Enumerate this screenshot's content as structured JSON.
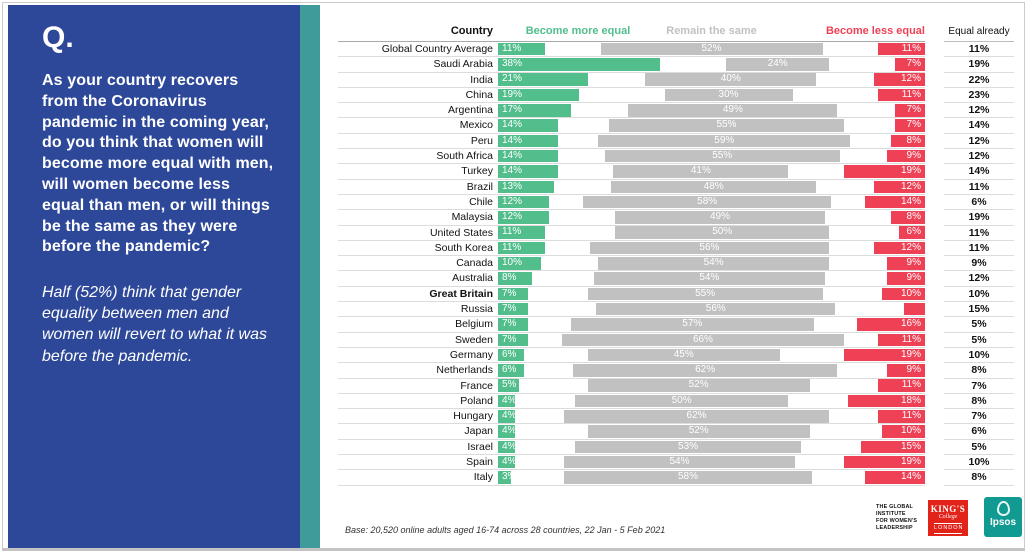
{
  "panel": {
    "q_label": "Q.",
    "question": "As your country recovers from the Coronavirus pandemic in the coming year, do you think that women will become more equal with men, will women become less equal than men, or will things be the same as they were before the pandemic?",
    "note": "Half (52%) think that gender equality between men and women will revert to what it was before the pandemic."
  },
  "chart_data": {
    "type": "bar",
    "orientation": "horizontal",
    "subtype": "diverging-stacked-percentage",
    "xlim": [
      0,
      100
    ],
    "grid": false,
    "legend_position": "column-headers",
    "headers": {
      "country": "Country",
      "more": "Become more equal",
      "same": "Remain the same",
      "less": "Become less equal",
      "equal_already": "Equal already"
    },
    "colors": {
      "more": "#52BE8C",
      "same": "#C1C1C1",
      "less": "#EE4156"
    },
    "rows": [
      {
        "country": "Global Country Average",
        "more": 11,
        "same": 52,
        "less": 11,
        "equal_already": "11%"
      },
      {
        "country": "Saudi Arabia",
        "more": 38,
        "same": 24,
        "less": 7,
        "equal_already": "19%"
      },
      {
        "country": "India",
        "more": 21,
        "same": 40,
        "less": 12,
        "equal_already": "22%"
      },
      {
        "country": "China",
        "more": 19,
        "same": 30,
        "less": 11,
        "equal_already": "23%"
      },
      {
        "country": "Argentina",
        "more": 17,
        "same": 49,
        "less": 7,
        "equal_already": "12%"
      },
      {
        "country": "Mexico",
        "more": 14,
        "same": 55,
        "less": 7,
        "equal_already": "14%"
      },
      {
        "country": "Peru",
        "more": 14,
        "same": 59,
        "less": 8,
        "equal_already": "12%"
      },
      {
        "country": "South Africa",
        "more": 14,
        "same": 55,
        "less": 9,
        "equal_already": "12%"
      },
      {
        "country": "Turkey",
        "more": 14,
        "same": 41,
        "less": 19,
        "equal_already": "14%"
      },
      {
        "country": "Brazil",
        "more": 13,
        "same": 48,
        "less": 12,
        "equal_already": "11%"
      },
      {
        "country": "Chile",
        "more": 12,
        "same": 58,
        "less": 14,
        "equal_already": "6%"
      },
      {
        "country": "Malaysia",
        "more": 12,
        "same": 49,
        "less": 8,
        "equal_already": "19%"
      },
      {
        "country": "United States",
        "more": 11,
        "same": 50,
        "less": 6,
        "equal_already": "11%"
      },
      {
        "country": "South Korea",
        "more": 11,
        "same": 56,
        "less": 12,
        "equal_already": "11%"
      },
      {
        "country": "Canada",
        "more": 10,
        "same": 54,
        "less": 9,
        "equal_already": "9%"
      },
      {
        "country": "Australia",
        "more": 8,
        "same": 54,
        "less": 9,
        "equal_already": "12%"
      },
      {
        "country": "Great Britain",
        "bold": true,
        "more": 7,
        "same": 55,
        "less": 10,
        "equal_already": "10%"
      },
      {
        "country": "Russia",
        "more": 7,
        "same": 56,
        "less": 5,
        "less_label": "",
        "equal_already": "15%"
      },
      {
        "country": "Belgium",
        "more": 7,
        "same": 57,
        "less": 16,
        "equal_already": "5%"
      },
      {
        "country": "Sweden",
        "more": 7,
        "same": 66,
        "less": 11,
        "equal_already": "5%"
      },
      {
        "country": "Germany",
        "more": 6,
        "same": 45,
        "less": 19,
        "equal_already": "10%"
      },
      {
        "country": "Netherlands",
        "more": 6,
        "same": 62,
        "less": 9,
        "equal_already": "8%"
      },
      {
        "country": "France",
        "more": 5,
        "same": 52,
        "less": 11,
        "equal_already": "7%"
      },
      {
        "country": "Poland",
        "more": 4,
        "same": 50,
        "less": 18,
        "equal_already": "8%"
      },
      {
        "country": "Hungary",
        "more": 4,
        "same": 62,
        "less": 11,
        "equal_already": "7%"
      },
      {
        "country": "Japan",
        "more": 4,
        "same": 52,
        "less": 10,
        "equal_already": "6%"
      },
      {
        "country": "Israel",
        "more": 4,
        "same": 53,
        "less": 15,
        "equal_already": "5%"
      },
      {
        "country": "Spain",
        "more": 4,
        "same": 54,
        "less": 19,
        "equal_already": "10%"
      },
      {
        "country": "Italy",
        "more": 3,
        "same": 58,
        "less": 14,
        "equal_already": "8%"
      }
    ]
  },
  "footer": {
    "base": "Base: 20,520 online adults aged 16-74 across 28 countries,  22 Jan - 5 Feb 2021",
    "logos": {
      "giwl_lines": [
        "THE GLOBAL",
        "INSTITUTE",
        "FOR WOMEN'S",
        "LEADERSHIP"
      ],
      "kings": {
        "line1": "KING'S",
        "line2": "College",
        "line3": "LONDON"
      },
      "ipsos": "Ipsos"
    }
  }
}
